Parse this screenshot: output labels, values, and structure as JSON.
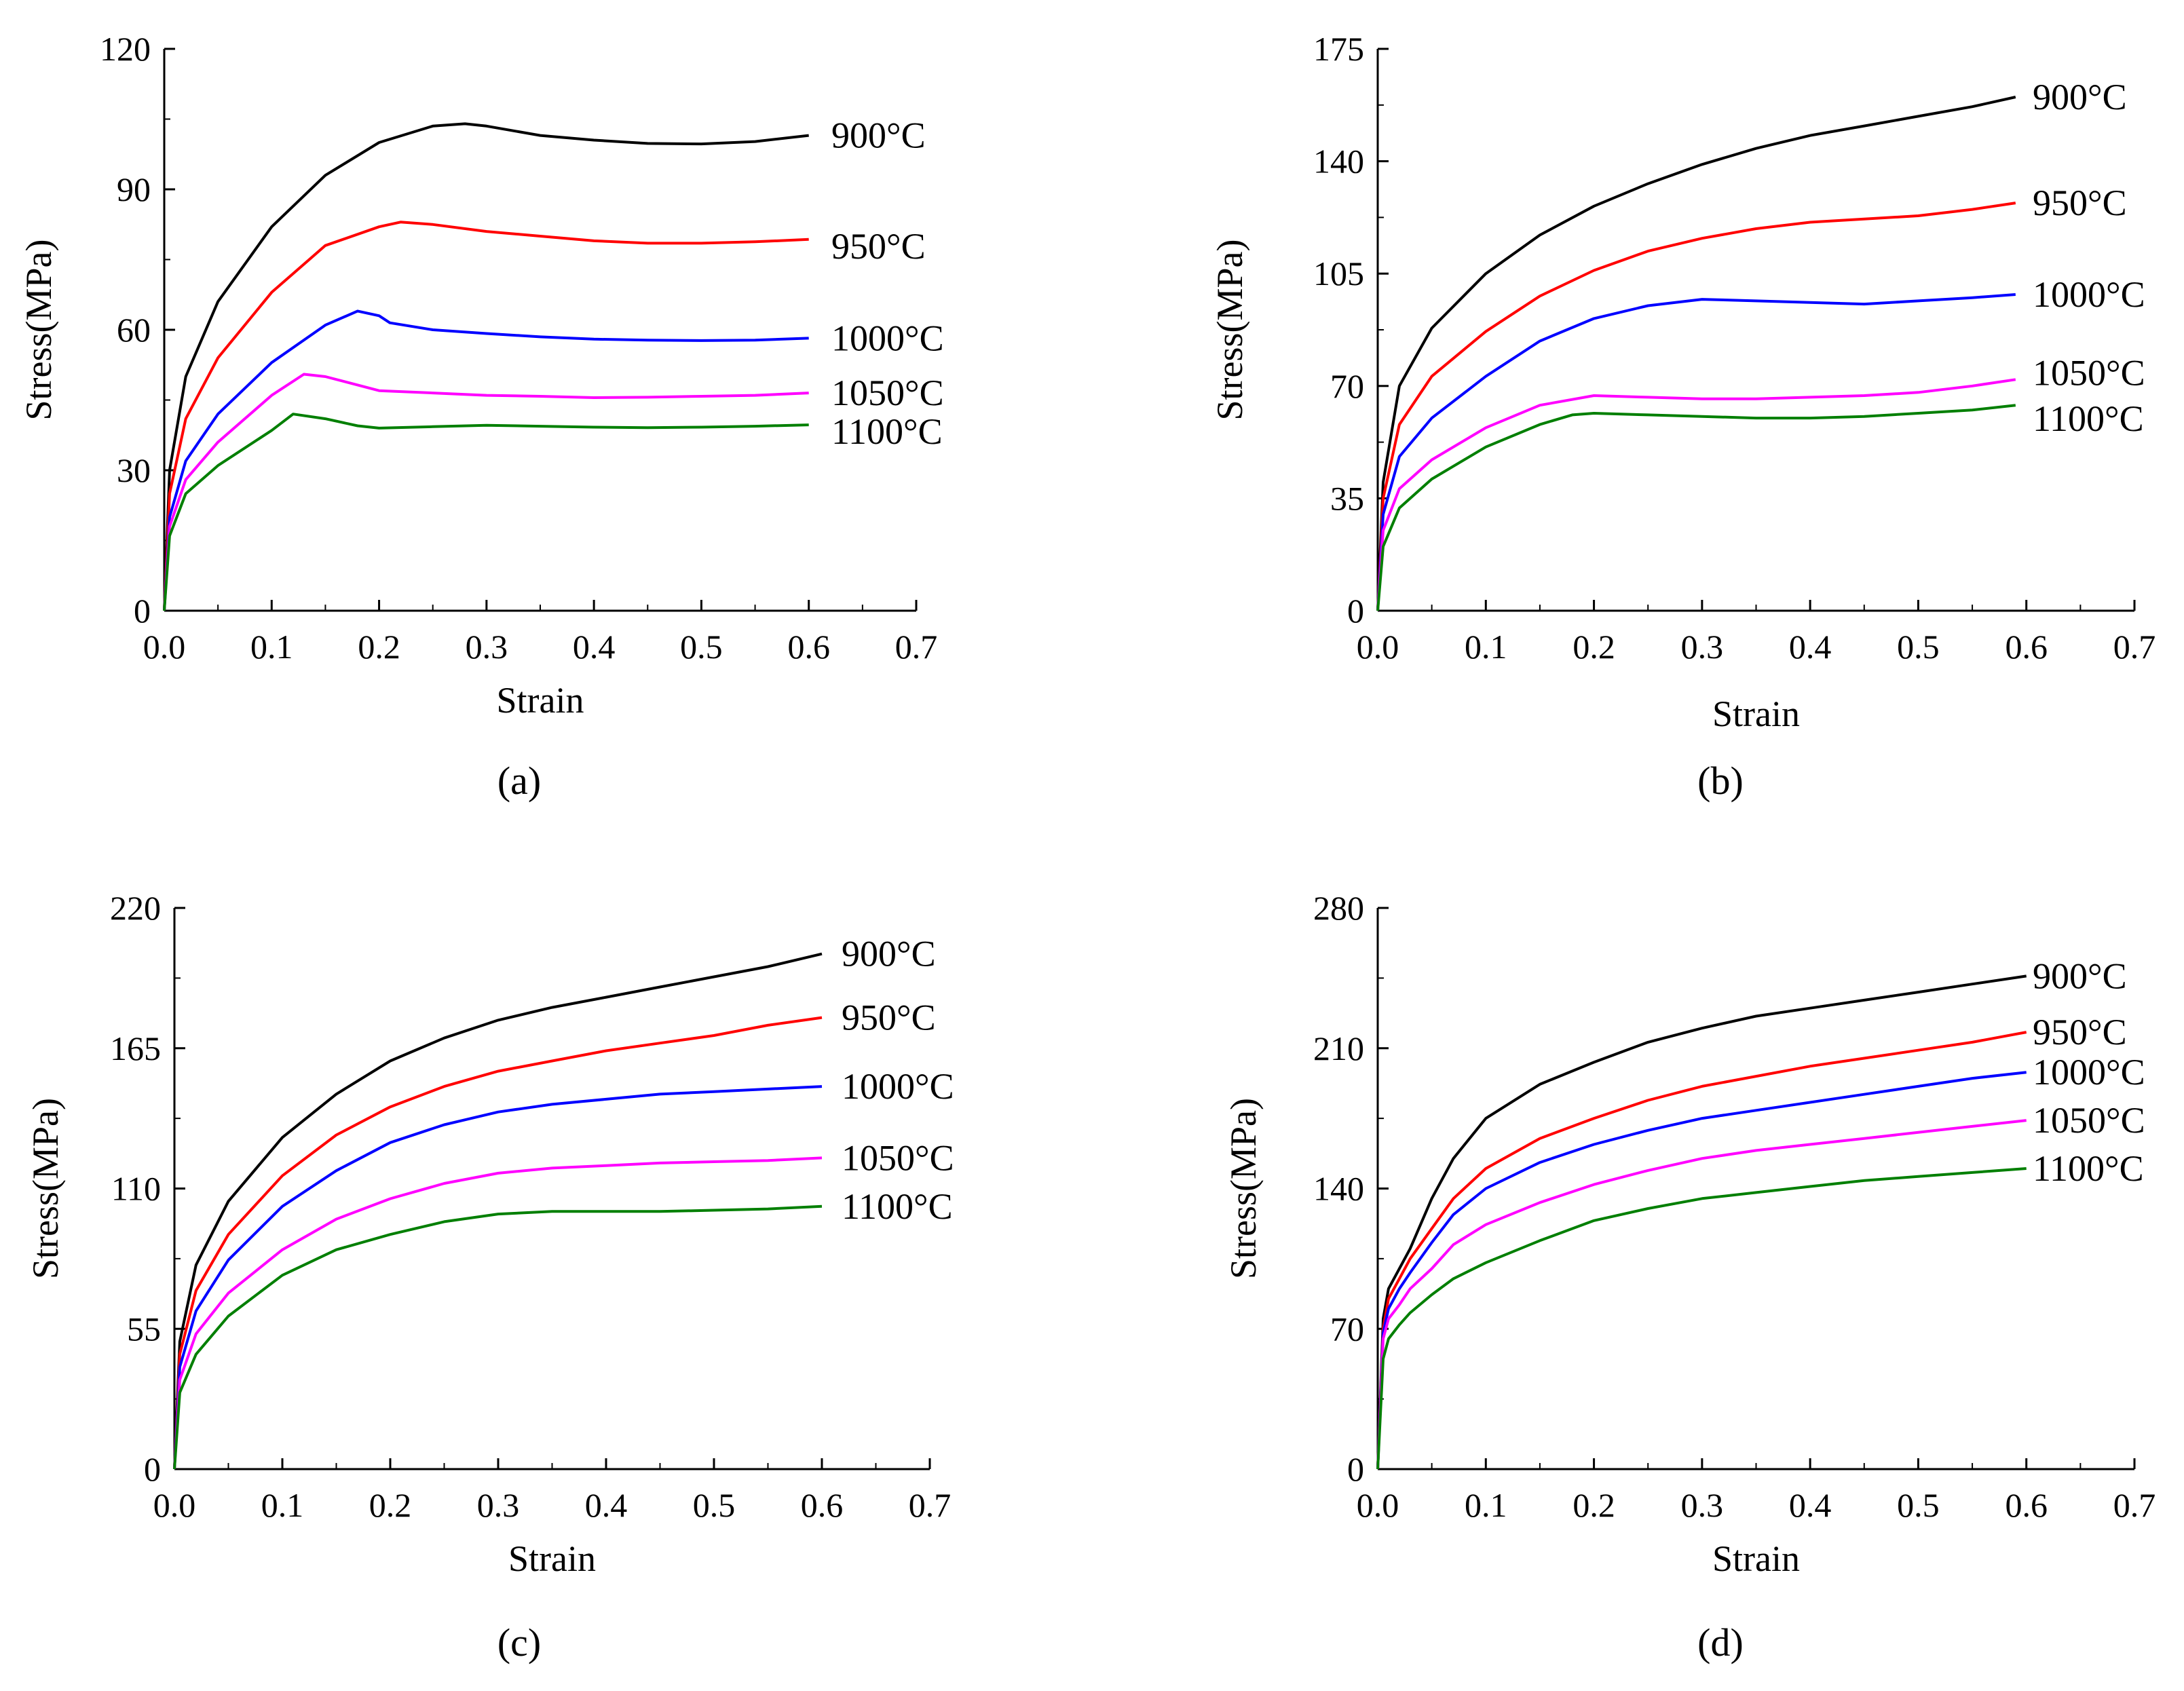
{
  "chart_data": [
    {
      "type": "line",
      "panel": "a",
      "caption": "(a)",
      "xlabel": "Strain",
      "ylabel": "Stress(MPa)",
      "xlim": [
        0.0,
        0.7
      ],
      "ylim": [
        0,
        120
      ],
      "xticks": [
        "0.0",
        "0.1",
        "0.2",
        "0.3",
        "0.4",
        "0.5",
        "0.6",
        "0.7"
      ],
      "yticks": [
        "0",
        "30",
        "60",
        "90",
        "120"
      ],
      "series": [
        {
          "name": "900°C",
          "color": "#000000",
          "x": [
            0,
            0.005,
            0.02,
            0.05,
            0.1,
            0.15,
            0.2,
            0.25,
            0.28,
            0.3,
            0.35,
            0.4,
            0.45,
            0.5,
            0.55,
            0.6
          ],
          "y": [
            0,
            30,
            50,
            66,
            82,
            93,
            100,
            103.5,
            104,
            103.5,
            101.5,
            100.5,
            99.8,
            99.7,
            100.2,
            101.5
          ]
        },
        {
          "name": "950°C",
          "color": "#ff0000",
          "x": [
            0,
            0.005,
            0.02,
            0.05,
            0.1,
            0.15,
            0.2,
            0.22,
            0.25,
            0.3,
            0.35,
            0.4,
            0.45,
            0.5,
            0.55,
            0.6
          ],
          "y": [
            0,
            25,
            41,
            54,
            68,
            78,
            82,
            83,
            82.5,
            81,
            80,
            79,
            78.5,
            78.5,
            78.8,
            79.3
          ]
        },
        {
          "name": "1000°C",
          "color": "#0000ff",
          "x": [
            0,
            0.005,
            0.02,
            0.05,
            0.1,
            0.15,
            0.18,
            0.2,
            0.21,
            0.25,
            0.3,
            0.35,
            0.4,
            0.45,
            0.5,
            0.55,
            0.6
          ],
          "y": [
            0,
            20,
            32,
            42,
            53,
            61,
            64,
            63,
            61.5,
            60,
            59.2,
            58.5,
            58,
            57.8,
            57.7,
            57.8,
            58.2
          ]
        },
        {
          "name": "1050°C",
          "color": "#ff00ff",
          "x": [
            0,
            0.005,
            0.02,
            0.05,
            0.1,
            0.13,
            0.15,
            0.2,
            0.25,
            0.3,
            0.35,
            0.4,
            0.45,
            0.5,
            0.55,
            0.6
          ],
          "y": [
            0,
            18,
            28,
            36,
            46,
            50.5,
            50,
            47,
            46.5,
            46,
            45.8,
            45.5,
            45.6,
            45.8,
            46,
            46.5
          ]
        },
        {
          "name": "1100°C",
          "color": "#007f00",
          "x": [
            0,
            0.005,
            0.02,
            0.05,
            0.1,
            0.12,
            0.15,
            0.18,
            0.2,
            0.25,
            0.3,
            0.35,
            0.4,
            0.45,
            0.5,
            0.55,
            0.6
          ],
          "y": [
            0,
            16,
            25,
            31,
            38.5,
            42,
            41,
            39.5,
            39,
            39.3,
            39.6,
            39.4,
            39.2,
            39.1,
            39.2,
            39.4,
            39.7
          ]
        }
      ]
    },
    {
      "type": "line",
      "panel": "b",
      "caption": "(b)",
      "xlabel": "Strain",
      "ylabel": "Stress(MPa)",
      "xlim": [
        0.0,
        0.7
      ],
      "ylim": [
        0,
        175
      ],
      "xticks": [
        "0.0",
        "0.1",
        "0.2",
        "0.3",
        "0.4",
        "0.5",
        "0.6",
        "0.7"
      ],
      "yticks": [
        "0",
        "35",
        "70",
        "105",
        "140",
        "175"
      ],
      "series": [
        {
          "name": "900°C",
          "color": "#000000",
          "x": [
            0,
            0.005,
            0.02,
            0.05,
            0.1,
            0.15,
            0.2,
            0.25,
            0.3,
            0.35,
            0.4,
            0.45,
            0.5,
            0.55,
            0.59
          ],
          "y": [
            0,
            40,
            70,
            88,
            105,
            117,
            126,
            133,
            139,
            144,
            148,
            151,
            154,
            157,
            160
          ]
        },
        {
          "name": "950°C",
          "color": "#ff0000",
          "x": [
            0,
            0.005,
            0.02,
            0.05,
            0.1,
            0.15,
            0.2,
            0.25,
            0.3,
            0.35,
            0.4,
            0.45,
            0.5,
            0.55,
            0.59
          ],
          "y": [
            0,
            35,
            58,
            73,
            87,
            98,
            106,
            112,
            116,
            119,
            121,
            122,
            123,
            125,
            127
          ]
        },
        {
          "name": "1000°C",
          "color": "#0000ff",
          "x": [
            0,
            0.005,
            0.02,
            0.05,
            0.1,
            0.15,
            0.2,
            0.25,
            0.3,
            0.35,
            0.4,
            0.45,
            0.5,
            0.55,
            0.59
          ],
          "y": [
            0,
            30,
            48,
            60,
            73,
            84,
            91,
            95,
            97,
            96.5,
            96,
            95.5,
            96.5,
            97.5,
            98.5
          ]
        },
        {
          "name": "1050°C",
          "color": "#ff00ff",
          "x": [
            0,
            0.005,
            0.02,
            0.05,
            0.1,
            0.15,
            0.2,
            0.25,
            0.3,
            0.35,
            0.4,
            0.45,
            0.5,
            0.55,
            0.59
          ],
          "y": [
            0,
            25,
            38,
            47,
            57,
            64,
            67,
            66.5,
            66,
            66,
            66.5,
            67,
            68,
            70,
            72
          ]
        },
        {
          "name": "1100°C",
          "color": "#007f00",
          "x": [
            0,
            0.005,
            0.02,
            0.05,
            0.1,
            0.15,
            0.18,
            0.2,
            0.25,
            0.3,
            0.35,
            0.4,
            0.45,
            0.5,
            0.55,
            0.59
          ],
          "y": [
            0,
            20,
            32,
            41,
            51,
            58,
            61,
            61.5,
            61,
            60.5,
            60,
            60,
            60.5,
            61.5,
            62.5,
            64
          ]
        }
      ]
    },
    {
      "type": "line",
      "panel": "c",
      "caption": "(c)",
      "xlabel": "Strain",
      "ylabel": "Stress(MPa)",
      "xlim": [
        0.0,
        0.7
      ],
      "ylim": [
        0,
        220
      ],
      "xticks": [
        "0.0",
        "0.1",
        "0.2",
        "0.3",
        "0.4",
        "0.5",
        "0.6",
        "0.7"
      ],
      "yticks": [
        "0",
        "55",
        "110",
        "165",
        "220"
      ],
      "series": [
        {
          "name": "900°C",
          "color": "#000000",
          "x": [
            0,
            0.005,
            0.02,
            0.05,
            0.1,
            0.15,
            0.2,
            0.25,
            0.3,
            0.35,
            0.4,
            0.45,
            0.5,
            0.55,
            0.6
          ],
          "y": [
            0,
            50,
            80,
            105,
            130,
            147,
            160,
            169,
            176,
            181,
            185,
            189,
            193,
            197,
            202
          ]
        },
        {
          "name": "950°C",
          "color": "#ff0000",
          "x": [
            0,
            0.005,
            0.02,
            0.05,
            0.1,
            0.15,
            0.2,
            0.25,
            0.3,
            0.35,
            0.4,
            0.45,
            0.5,
            0.55,
            0.6
          ],
          "y": [
            0,
            45,
            70,
            92,
            115,
            131,
            142,
            150,
            156,
            160,
            164,
            167,
            170,
            174,
            177
          ]
        },
        {
          "name": "1000°C",
          "color": "#0000ff",
          "x": [
            0,
            0.005,
            0.02,
            0.05,
            0.1,
            0.15,
            0.2,
            0.25,
            0.3,
            0.35,
            0.4,
            0.45,
            0.5,
            0.55,
            0.6
          ],
          "y": [
            0,
            40,
            62,
            82,
            103,
            117,
            128,
            135,
            140,
            143,
            145,
            147,
            148,
            149,
            150
          ]
        },
        {
          "name": "1050°C",
          "color": "#ff00ff",
          "x": [
            0,
            0.005,
            0.02,
            0.05,
            0.1,
            0.15,
            0.2,
            0.25,
            0.3,
            0.35,
            0.4,
            0.45,
            0.5,
            0.55,
            0.6
          ],
          "y": [
            0,
            35,
            53,
            69,
            86,
            98,
            106,
            112,
            116,
            118,
            119,
            120,
            120.5,
            121,
            122
          ]
        },
        {
          "name": "1100°C",
          "color": "#007f00",
          "x": [
            0,
            0.005,
            0.02,
            0.05,
            0.1,
            0.15,
            0.2,
            0.25,
            0.3,
            0.35,
            0.4,
            0.45,
            0.5,
            0.55,
            0.6
          ],
          "y": [
            0,
            30,
            45,
            60,
            76,
            86,
            92,
            97,
            100,
            101,
            101,
            101,
            101.5,
            102,
            103
          ]
        }
      ]
    },
    {
      "type": "line",
      "panel": "d",
      "caption": "(d)",
      "xlabel": "Strain",
      "ylabel": "Stress(MPa)",
      "xlim": [
        0.0,
        0.7
      ],
      "ylim": [
        0,
        280
      ],
      "xticks": [
        "0.0",
        "0.1",
        "0.2",
        "0.3",
        "0.4",
        "0.5",
        "0.6",
        "0.7"
      ],
      "yticks": [
        "0",
        "70",
        "140",
        "210",
        "280"
      ],
      "series": [
        {
          "name": "900°C",
          "color": "#000000",
          "x": [
            0,
            0.005,
            0.01,
            0.02,
            0.03,
            0.05,
            0.07,
            0.1,
            0.15,
            0.2,
            0.25,
            0.3,
            0.35,
            0.4,
            0.45,
            0.5,
            0.55,
            0.6
          ],
          "y": [
            0,
            75,
            90,
            100,
            110,
            135,
            155,
            175,
            192,
            203,
            213,
            220,
            226,
            230,
            234,
            238,
            242,
            246
          ]
        },
        {
          "name": "950°C",
          "color": "#ff0000",
          "x": [
            0,
            0.005,
            0.01,
            0.02,
            0.03,
            0.05,
            0.07,
            0.1,
            0.15,
            0.2,
            0.25,
            0.3,
            0.35,
            0.4,
            0.45,
            0.5,
            0.55,
            0.6
          ],
          "y": [
            0,
            70,
            85,
            95,
            105,
            120,
            135,
            150,
            165,
            175,
            184,
            191,
            196,
            201,
            205,
            209,
            213,
            218
          ]
        },
        {
          "name": "1000°C",
          "color": "#0000ff",
          "x": [
            0,
            0.005,
            0.01,
            0.02,
            0.03,
            0.05,
            0.07,
            0.1,
            0.15,
            0.2,
            0.25,
            0.3,
            0.35,
            0.4,
            0.45,
            0.5,
            0.55,
            0.6
          ],
          "y": [
            0,
            68,
            80,
            90,
            98,
            113,
            127,
            140,
            153,
            162,
            169,
            175,
            179,
            183,
            187,
            191,
            195,
            198
          ]
        },
        {
          "name": "1050°C",
          "color": "#ff00ff",
          "x": [
            0,
            0.005,
            0.01,
            0.02,
            0.03,
            0.05,
            0.07,
            0.1,
            0.15,
            0.2,
            0.25,
            0.3,
            0.35,
            0.4,
            0.45,
            0.5,
            0.55,
            0.6
          ],
          "y": [
            0,
            65,
            75,
            82,
            90,
            100,
            112,
            122,
            133,
            142,
            149,
            155,
            159,
            162,
            165,
            168,
            171,
            174
          ]
        },
        {
          "name": "1100°C",
          "color": "#007f00",
          "x": [
            0,
            0.005,
            0.01,
            0.02,
            0.03,
            0.05,
            0.07,
            0.1,
            0.15,
            0.2,
            0.25,
            0.3,
            0.35,
            0.4,
            0.45,
            0.5,
            0.55,
            0.6
          ],
          "y": [
            0,
            55,
            65,
            72,
            78,
            87,
            95,
            103,
            114,
            124,
            130,
            135,
            138,
            141,
            144,
            146,
            148,
            150
          ]
        }
      ]
    }
  ]
}
